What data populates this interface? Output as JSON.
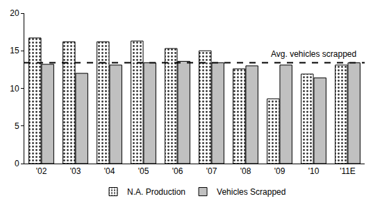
{
  "chart_data": {
    "type": "bar",
    "categories": [
      "'02",
      "'03",
      "'04",
      "'05",
      "'06",
      "'07",
      "'08",
      "'09",
      "'10",
      "'11E"
    ],
    "series": [
      {
        "name": "N.A. Production",
        "color": "#ffffff",
        "marker": "dotted",
        "values": [
          16.7,
          16.2,
          16.2,
          16.3,
          15.3,
          15.0,
          12.6,
          8.6,
          11.9,
          13.1
        ]
      },
      {
        "name": "Vehicles Scrapped",
        "color": "#c0c0c0",
        "marker": "solid",
        "values": [
          13.2,
          12.0,
          13.1,
          13.4,
          13.6,
          13.4,
          13.0,
          13.1,
          11.4,
          13.4
        ]
      }
    ],
    "reference_line": {
      "value": 13.4,
      "label": "Avg. vehicles scrapped",
      "line_style": "dashed",
      "color": "#000000"
    },
    "ylim": [
      0,
      20
    ],
    "yticks": [
      0,
      5,
      10,
      15,
      20
    ],
    "grid": false,
    "legend": "bottom"
  }
}
